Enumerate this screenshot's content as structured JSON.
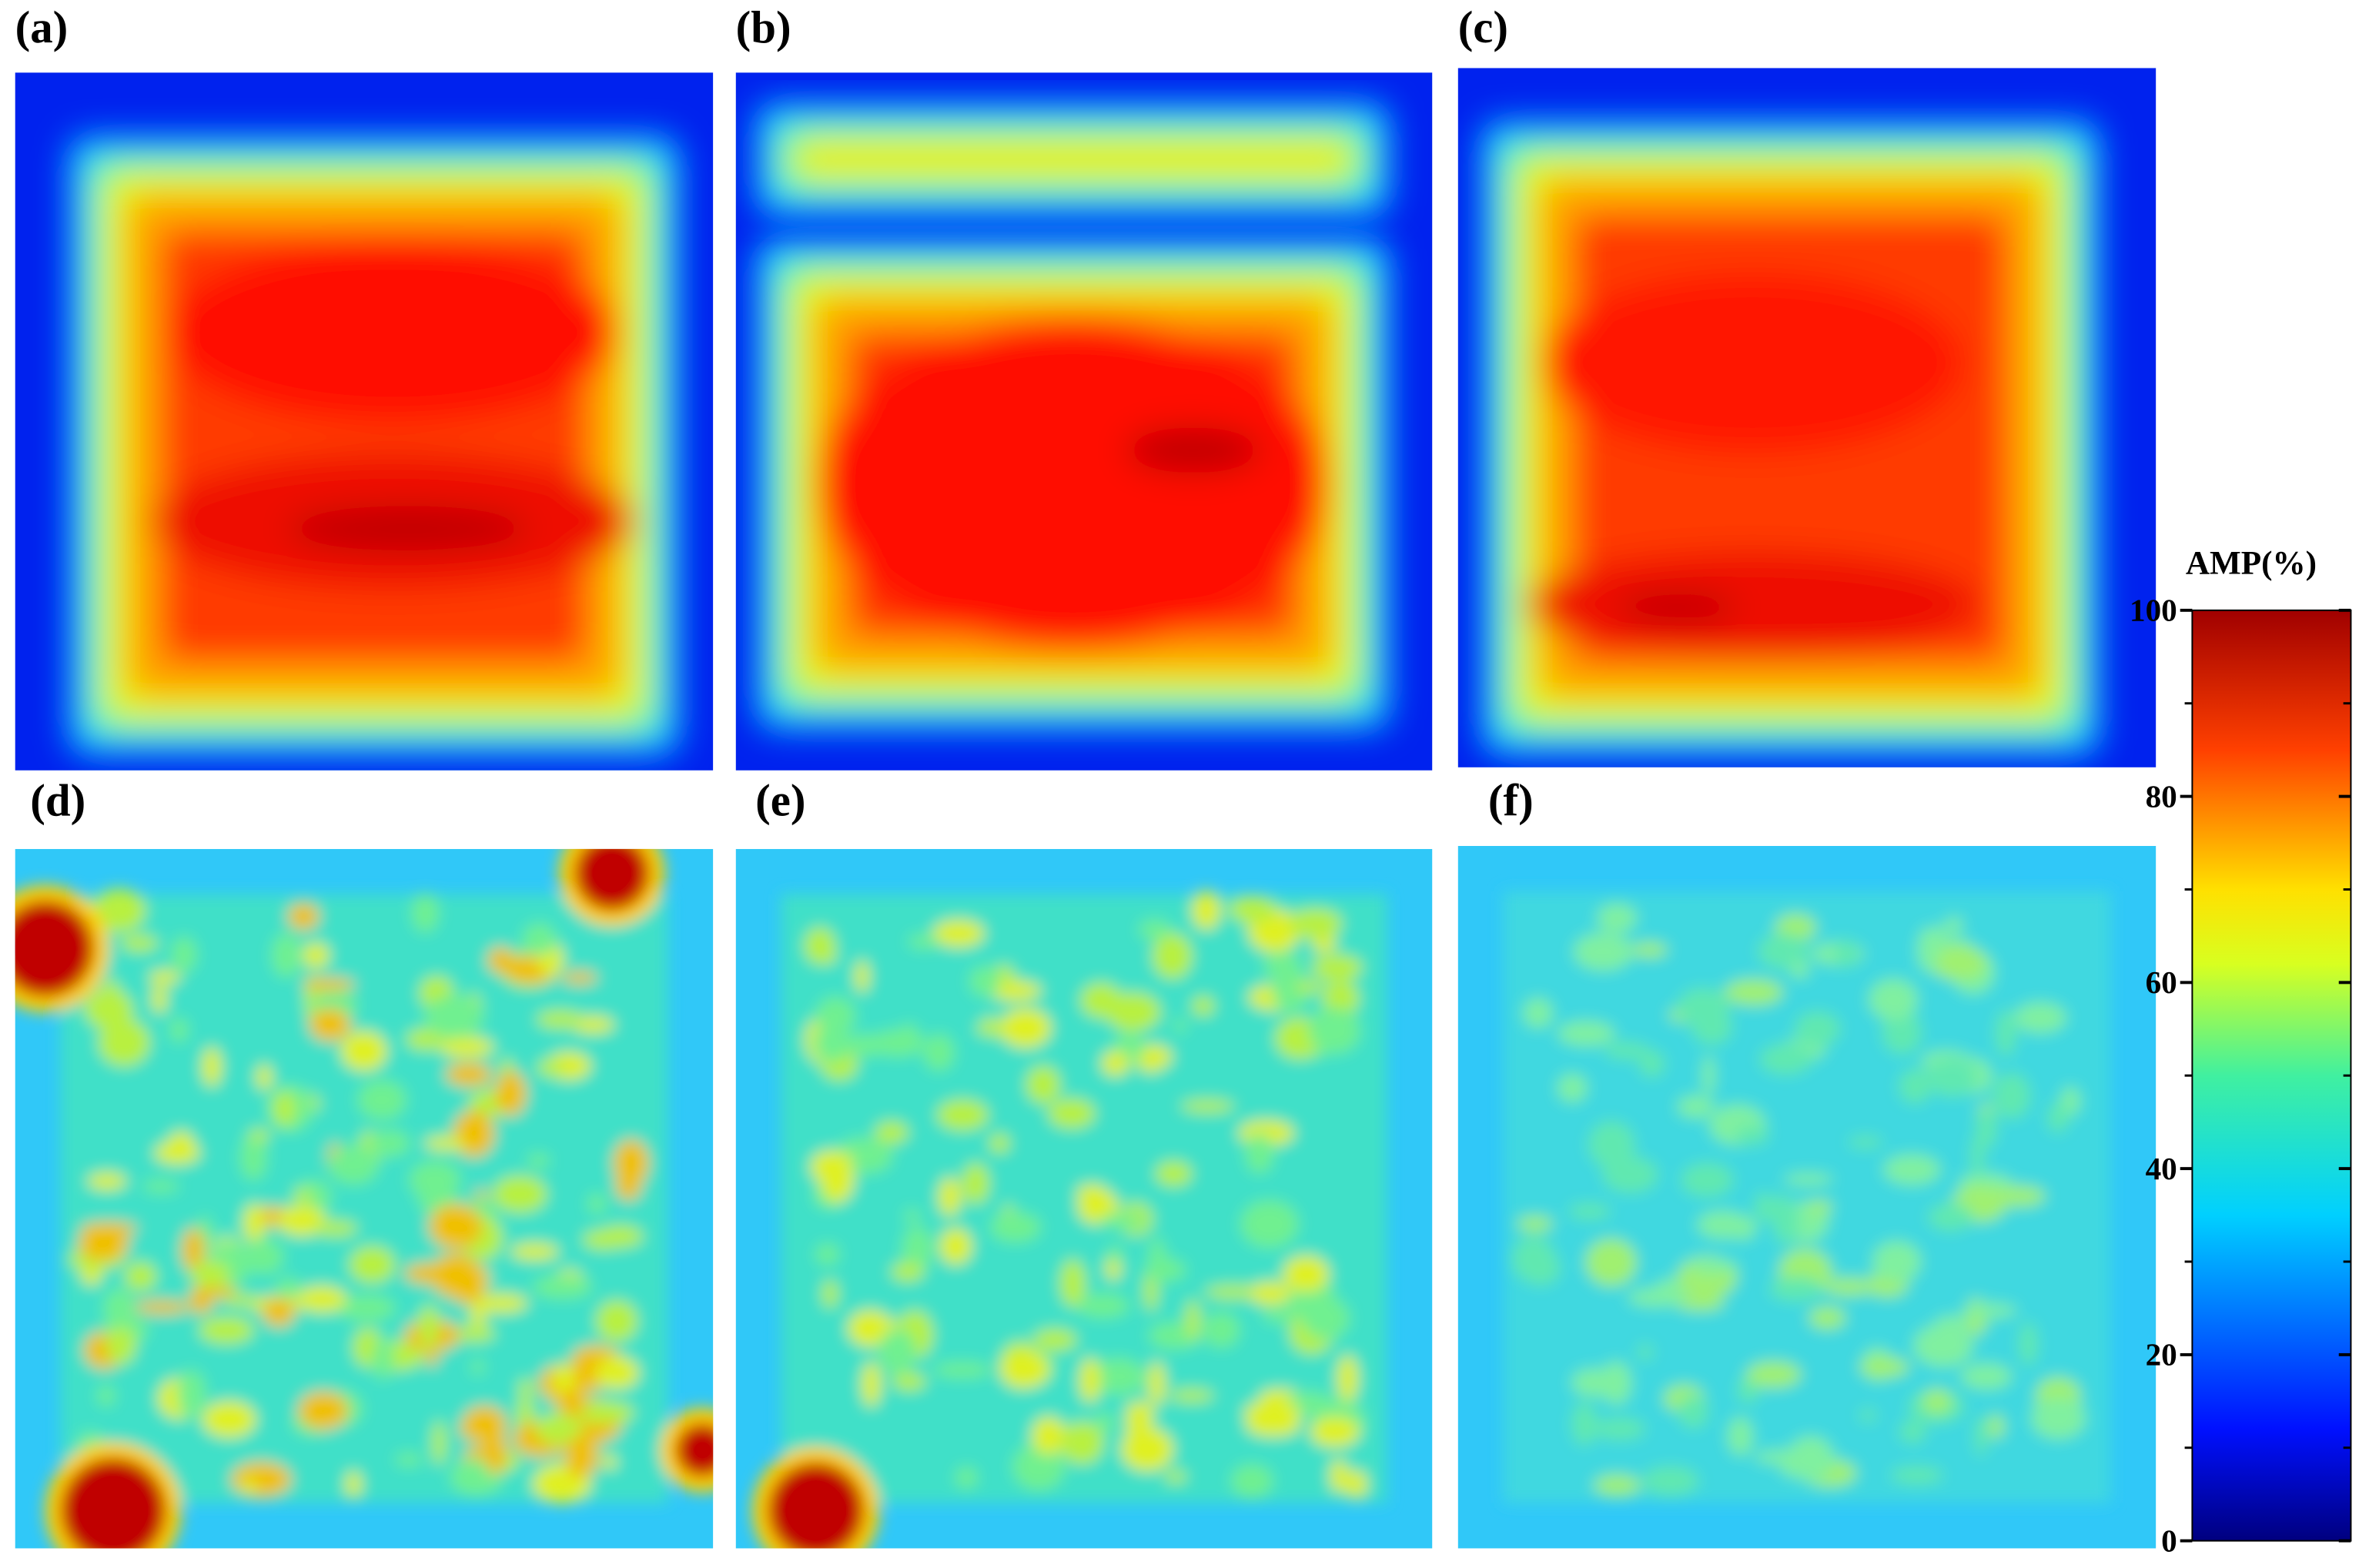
{
  "panels": [
    {
      "label": "(a)"
    },
    {
      "label": "(b)"
    },
    {
      "label": "(c)"
    },
    {
      "label": "(d)"
    },
    {
      "label": "(e)"
    },
    {
      "label": "(f)"
    }
  ],
  "colorbar": {
    "title": "AMP(%)",
    "lim": [
      0,
      100
    ],
    "ticks": [
      0,
      20,
      40,
      60,
      80,
      100
    ]
  }
}
